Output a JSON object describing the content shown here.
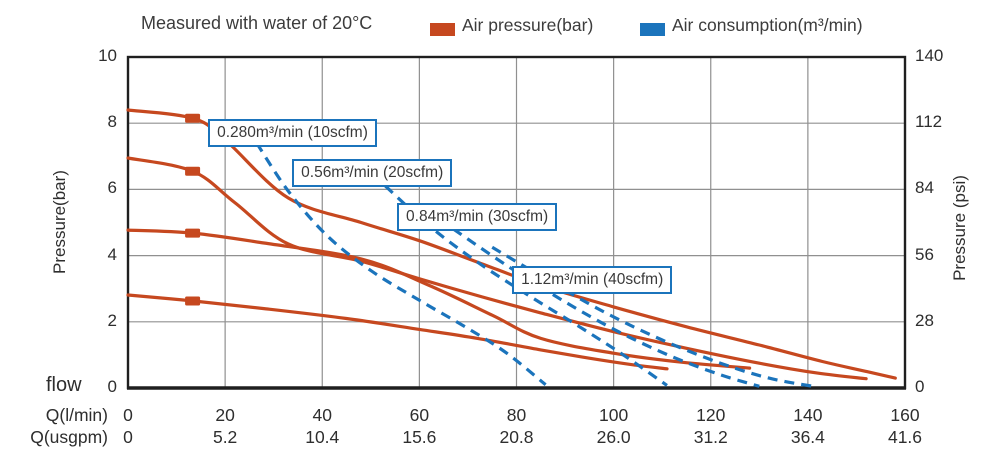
{
  "header": {
    "title": "Measured with water of 20°C",
    "legend": [
      {
        "label": "Air pressure(bar)",
        "color": "#C6481F",
        "line_style": "solid"
      },
      {
        "label": "Air consumption(m³/min)",
        "color": "#1B74BC",
        "line_style": "dashed"
      }
    ]
  },
  "colors": {
    "air_pressure": "#C6481F",
    "air_consumption": "#1B74BC",
    "grid": "#909090",
    "frame": "#1f1f1f"
  },
  "chart_data": {
    "type": "line",
    "title": "Measured with water of 20°C",
    "grid": true,
    "x_axis": {
      "label": "flow",
      "range": [
        0,
        160
      ],
      "rows": [
        {
          "label": "Q(l/min)",
          "ticks": [
            "0",
            "20",
            "40",
            "60",
            "80",
            "100",
            "120",
            "140",
            "160"
          ],
          "values": [
            0,
            20,
            40,
            60,
            80,
            100,
            120,
            140,
            160
          ]
        },
        {
          "label": "Q(usgpm)",
          "ticks": [
            "0",
            "5.2",
            "10.4",
            "15.6",
            "20.8",
            "26.0",
            "31.2",
            "36.4",
            "41.6"
          ],
          "values": [
            0,
            20,
            40,
            60,
            80,
            100,
            120,
            140,
            160
          ]
        }
      ]
    },
    "y_left": {
      "label": "Pressure(bar)",
      "range": [
        0,
        10
      ],
      "ticks": [
        "10",
        "8",
        "6",
        "4",
        "2",
        "0"
      ],
      "tick_values": [
        10,
        8,
        6,
        4,
        2,
        0
      ]
    },
    "y_right": {
      "label": "Pressure (psi)",
      "range": [
        0,
        140
      ],
      "ticks": [
        "140",
        "112",
        "84",
        "56",
        "28",
        "0"
      ],
      "tick_values": [
        140,
        112,
        84,
        56,
        28,
        0
      ]
    },
    "series": [
      {
        "name": "air-pressure-curve-1",
        "group": "air_pressure",
        "style": "solid",
        "marker": {
          "q": 13.3,
          "bar": 8.15
        },
        "points": [
          [
            0,
            8.4
          ],
          [
            13.3,
            8.15
          ],
          [
            20,
            7.5
          ],
          [
            33,
            5.74
          ],
          [
            48,
            5.0
          ],
          [
            60,
            4.45
          ],
          [
            72,
            3.8
          ],
          [
            85,
            3.1
          ],
          [
            100,
            2.45
          ],
          [
            115,
            1.85
          ],
          [
            130,
            1.3
          ],
          [
            143,
            0.8
          ],
          [
            152,
            0.5
          ],
          [
            158,
            0.3
          ]
        ]
      },
      {
        "name": "air-pressure-curve-2",
        "group": "air_pressure",
        "style": "solid",
        "marker": {
          "q": 13.3,
          "bar": 6.55
        },
        "points": [
          [
            0,
            6.95
          ],
          [
            13.3,
            6.55
          ],
          [
            22,
            5.6
          ],
          [
            33,
            4.35
          ],
          [
            48,
            3.83
          ],
          [
            60,
            3.3
          ],
          [
            73,
            2.75
          ],
          [
            85,
            2.27
          ],
          [
            100,
            1.7
          ],
          [
            115,
            1.2
          ],
          [
            130,
            0.75
          ],
          [
            142,
            0.45
          ],
          [
            152,
            0.28
          ]
        ]
      },
      {
        "name": "air-pressure-curve-3",
        "group": "air_pressure",
        "style": "solid",
        "marker": {
          "q": 13.3,
          "bar": 4.68
        },
        "points": [
          [
            0,
            4.77
          ],
          [
            13.3,
            4.68
          ],
          [
            28,
            4.38
          ],
          [
            48,
            3.9
          ],
          [
            62,
            3.1
          ],
          [
            75,
            2.2
          ],
          [
            85,
            1.5
          ],
          [
            100,
            1.05
          ],
          [
            114,
            0.78
          ],
          [
            128,
            0.6
          ]
        ]
      },
      {
        "name": "air-pressure-curve-4",
        "group": "air_pressure",
        "style": "solid",
        "marker": {
          "q": 13.3,
          "bar": 2.63
        },
        "points": [
          [
            0,
            2.81
          ],
          [
            13.3,
            2.63
          ],
          [
            28,
            2.4
          ],
          [
            45,
            2.1
          ],
          [
            60,
            1.77
          ],
          [
            72,
            1.5
          ],
          [
            85,
            1.15
          ],
          [
            95,
            0.9
          ],
          [
            104,
            0.7
          ],
          [
            111,
            0.58
          ]
        ]
      },
      {
        "name": "air-consumption-0.280",
        "group": "air_consumption",
        "style": "dashed",
        "points": [
          [
            26.5,
            7.4
          ],
          [
            33,
            5.95
          ],
          [
            41,
            4.6
          ],
          [
            50,
            3.55
          ],
          [
            60,
            2.65
          ],
          [
            70,
            1.8
          ],
          [
            78,
            1.05
          ],
          [
            86,
            0.1
          ]
        ]
      },
      {
        "name": "air-consumption-0.56",
        "group": "air_consumption",
        "style": "dashed",
        "points": [
          [
            53,
            6.1
          ],
          [
            62,
            4.9
          ],
          [
            72,
            3.8
          ],
          [
            83,
            2.75
          ],
          [
            93,
            1.85
          ],
          [
            102,
            1.0
          ],
          [
            111,
            0.08
          ]
        ]
      },
      {
        "name": "air-consumption-0.84",
        "group": "air_consumption",
        "style": "dashed",
        "points": [
          [
            67,
            4.8
          ],
          [
            78,
            3.7
          ],
          [
            90,
            2.6
          ],
          [
            101,
            1.7
          ],
          [
            112,
            0.95
          ],
          [
            122,
            0.4
          ],
          [
            130,
            0.05
          ]
        ]
      },
      {
        "name": "air-consumption-1.12",
        "group": "air_consumption",
        "style": "dashed",
        "points": [
          [
            75,
            4.25
          ],
          [
            86,
            3.3
          ],
          [
            98,
            2.3
          ],
          [
            110,
            1.45
          ],
          [
            122,
            0.75
          ],
          [
            132,
            0.3
          ],
          [
            141,
            0.05
          ]
        ]
      }
    ],
    "annotations": [
      {
        "label": "0.280m³/min (10scfm)",
        "q": 16.5,
        "bar": 8.12
      },
      {
        "label": "0.56m³/min (20scfm)",
        "q": 33.8,
        "bar": 6.92
      },
      {
        "label": "0.84m³/min (30scfm)",
        "q": 55.4,
        "bar": 5.6
      },
      {
        "label": "1.12m³/min (40scfm)",
        "q": 79.1,
        "bar": 3.69
      }
    ]
  }
}
